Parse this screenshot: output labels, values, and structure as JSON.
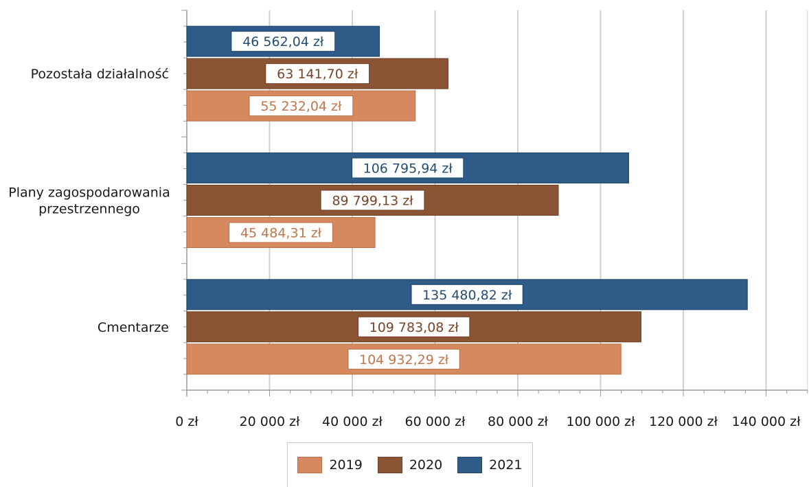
{
  "chart_data": {
    "type": "bar",
    "orientation": "horizontal",
    "categories": [
      "Pozostała działalność",
      "Plany zagospodarowania przestrzennego",
      "Cmentarze"
    ],
    "series": [
      {
        "name": "2019",
        "color": "#d6895e",
        "border": "#b86f47",
        "label_color": "#c0754a",
        "values": [
          55232.04,
          45484.31,
          104932.29
        ],
        "labels": [
          "55 232,04 zł",
          "45 484,31 zł",
          "104 932,29 zł"
        ]
      },
      {
        "name": "2020",
        "color": "#8b5434",
        "border": "#6e3f24",
        "label_color": "#7a4427",
        "values": [
          63141.7,
          89799.13,
          109783.08
        ],
        "labels": [
          "63 141,70 zł",
          "89 799,13 zł",
          "109 783,08 zł"
        ]
      },
      {
        "name": "2021",
        "color": "#2e5b87",
        "border": "#1f4466",
        "label_color": "#244d74",
        "values": [
          46562.04,
          106795.94,
          135480.82
        ],
        "labels": [
          "46 562,04 zł",
          "106 795,94 zł",
          "135 480,82 zł"
        ]
      }
    ],
    "xlim": [
      0,
      150000
    ],
    "xticks": [
      0,
      20000,
      40000,
      60000,
      80000,
      100000,
      120000,
      140000
    ],
    "xtick_labels": [
      "0 zł",
      "20 000 zł",
      "40 000 zł",
      "60 000 zł",
      "80 000 zł",
      "100 000 zł",
      "120 000 zł",
      "140 000 zł"
    ],
    "grid": true,
    "legend_position": "bottom"
  }
}
